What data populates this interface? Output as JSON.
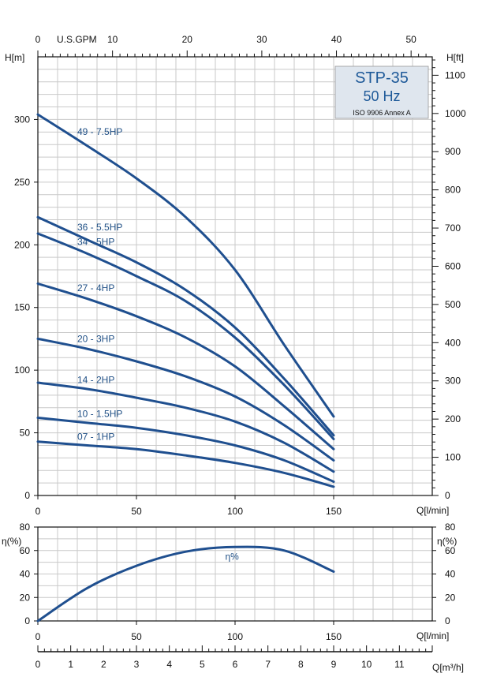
{
  "chart_data": [
    {
      "type": "line",
      "name": "head-curves",
      "title": "STP-35",
      "subtitle": "50 Hz",
      "note": "ISO 9906 Annex A",
      "xlabel": "Q[l/min]",
      "ylabel": "H[m]",
      "ylabel_right": "H[ft]",
      "xlabel_top": "U.S.GPM",
      "xlim": [
        0,
        200
      ],
      "ylim": [
        0,
        350
      ],
      "x_ticks": [
        0,
        50,
        100,
        150
      ],
      "y_ticks": [
        0,
        50,
        100,
        150,
        200,
        250,
        300
      ],
      "ft_ticks": [
        0,
        100,
        200,
        300,
        400,
        500,
        600,
        700,
        800,
        900,
        1000,
        1100
      ],
      "gpm_ticks": [
        0,
        10,
        20,
        30,
        40,
        50
      ],
      "gpm_labels": [
        "0",
        "10",
        "20",
        "30",
        "40",
        "50"
      ],
      "series": [
        {
          "name": "49 - 7.5HP",
          "x": [
            0,
            25,
            50,
            75,
            100,
            125,
            150
          ],
          "y": [
            304,
            279,
            253,
            222,
            180,
            120,
            63
          ]
        },
        {
          "name": "36 - 5.5HP",
          "x": [
            0,
            25,
            50,
            75,
            100,
            125,
            150
          ],
          "y": [
            222,
            204,
            186,
            164,
            134,
            93,
            48
          ]
        },
        {
          "name": "34 - 5HP",
          "x": [
            0,
            25,
            50,
            75,
            100,
            125,
            150
          ],
          "y": [
            209,
            193,
            175,
            155,
            126,
            88,
            45
          ]
        },
        {
          "name": "27 - 4HP",
          "x": [
            0,
            25,
            50,
            75,
            100,
            125,
            150
          ],
          "y": [
            169,
            157,
            143,
            126,
            103,
            71,
            37
          ]
        },
        {
          "name": "20 - 3HP",
          "x": [
            0,
            25,
            50,
            75,
            100,
            125,
            150
          ],
          "y": [
            125,
            117,
            107,
            95,
            79,
            56,
            28
          ]
        },
        {
          "name": "14 - 2HP",
          "x": [
            0,
            25,
            50,
            75,
            100,
            125,
            150
          ],
          "y": [
            90,
            85,
            78,
            70,
            59,
            42,
            19
          ]
        },
        {
          "name": "10 - 1.5HP",
          "x": [
            0,
            25,
            50,
            75,
            100,
            125,
            150
          ],
          "y": [
            62,
            58,
            54,
            48,
            40,
            28,
            11
          ]
        },
        {
          "name": "07 - 1HP",
          "x": [
            0,
            25,
            50,
            75,
            100,
            125,
            150
          ],
          "y": [
            43,
            40,
            37,
            32,
            26,
            18,
            7
          ]
        }
      ]
    },
    {
      "type": "line",
      "name": "efficiency-curve",
      "xlabel": "Q[l/min]",
      "ylabel": "η(%)",
      "ylabel_right": "η(%)",
      "xlim": [
        0,
        200
      ],
      "ylim": [
        0,
        80
      ],
      "x_ticks": [
        0,
        50,
        100,
        150
      ],
      "y_ticks": [
        0,
        20,
        40,
        60,
        80
      ],
      "series": [
        {
          "name": "η%",
          "x": [
            0,
            25,
            50,
            75,
            100,
            125,
            150
          ],
          "y": [
            0,
            28,
            47,
            59,
            63,
            60,
            42
          ]
        }
      ]
    },
    {
      "type": "axis",
      "name": "flow-m3h-axis",
      "xlabel": "Q[m³/h]",
      "xlim": [
        0,
        12
      ],
      "x_ticks": [
        0,
        1,
        2,
        3,
        4,
        5,
        6,
        7,
        8,
        9,
        10,
        11
      ]
    }
  ]
}
